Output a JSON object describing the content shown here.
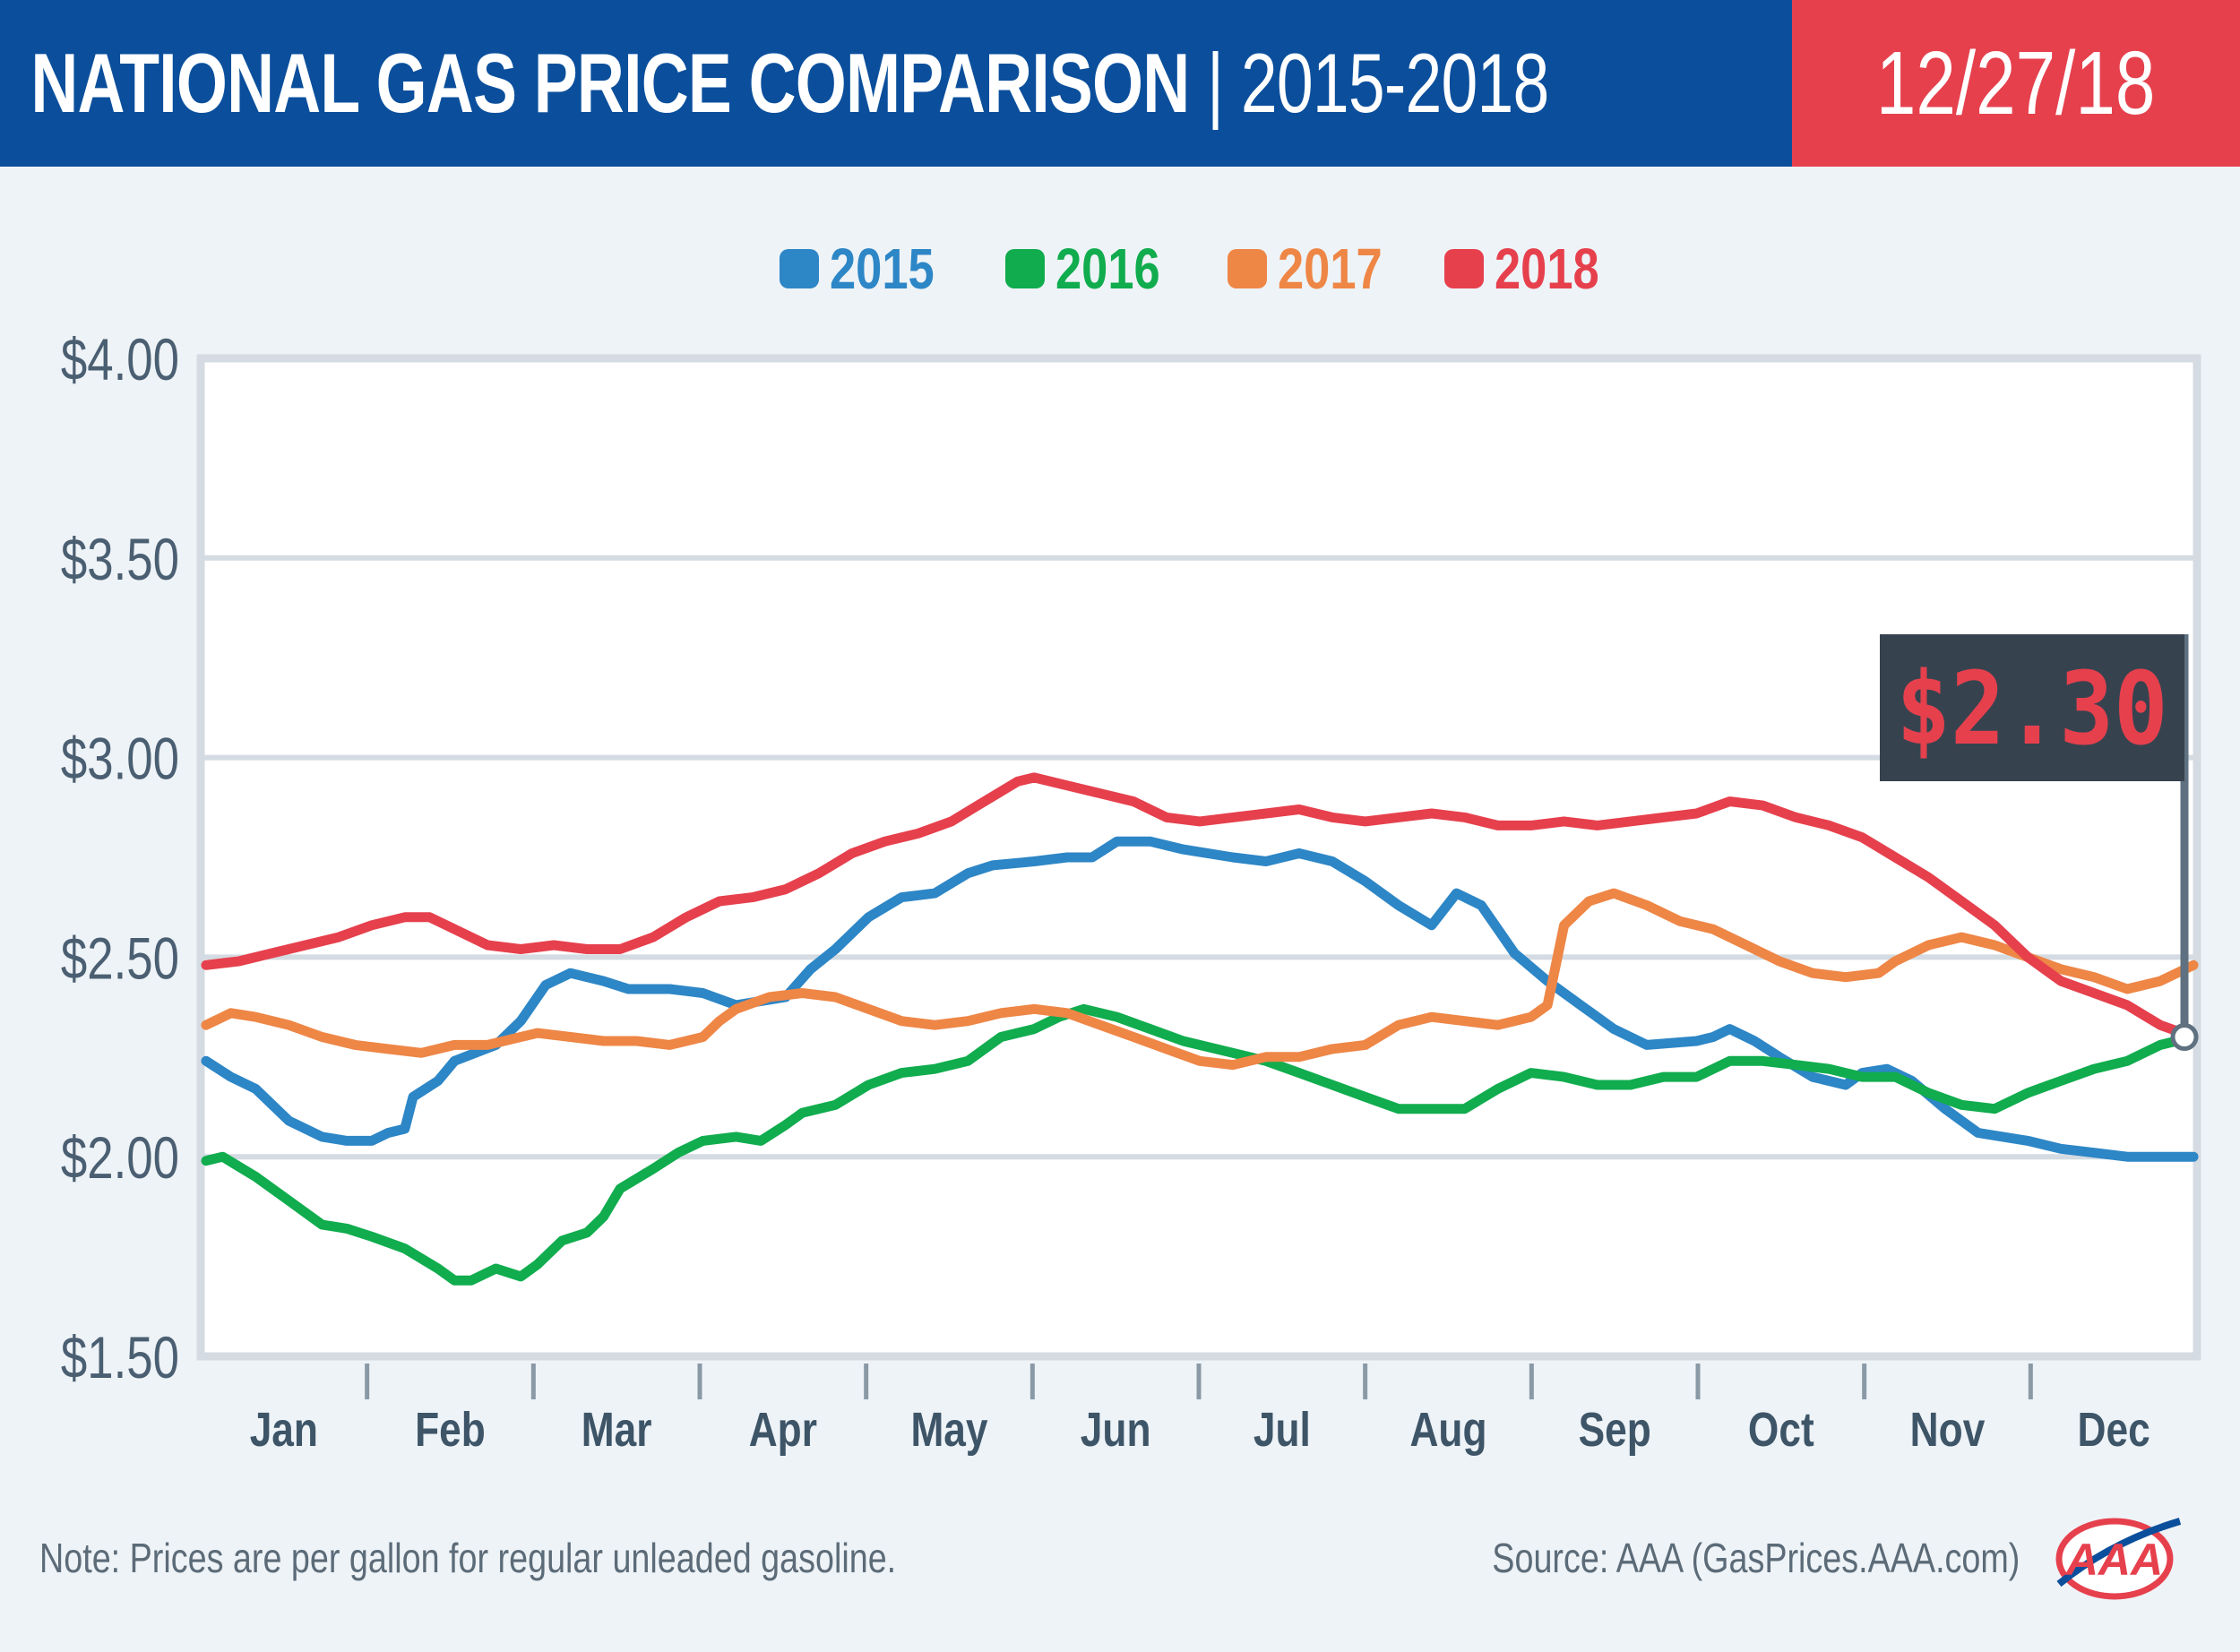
{
  "header": {
    "title_bold": "NATIONAL GAS PRICE COMPARISON",
    "title_rest": " | 2015-2018",
    "date": "12/27/18"
  },
  "colors": {
    "header_blue": "#0b4f9c",
    "header_red": "#e6404d",
    "series_2015": "#2d86c6",
    "series_2016": "#10ac4e",
    "series_2017": "#ee8646",
    "series_2018": "#e6404d"
  },
  "callout": {
    "value": "$2.30",
    "series": "2018"
  },
  "footer": {
    "note": "Note: Prices are per gallon for regular unleaded gasoline.",
    "source": "Source: AAA (GasPrices.AAA.com)",
    "logo_text": "AAA"
  },
  "chart_data": {
    "type": "line",
    "title": "NATIONAL GAS PRICE COMPARISON | 2015-2018",
    "xlabel": "",
    "ylabel": "",
    "ylim": [
      1.5,
      4.0
    ],
    "yticks": [
      1.5,
      2.0,
      2.5,
      3.0,
      3.5,
      4.0
    ],
    "ytick_labels": [
      "$1.50",
      "$2.00",
      "$2.50",
      "$3.00",
      "$3.50",
      "$4.00"
    ],
    "categories": [
      "Jan",
      "Feb",
      "Mar",
      "Apr",
      "May",
      "Jun",
      "Jul",
      "Aug",
      "Sep",
      "Oct",
      "Nov",
      "Dec"
    ],
    "grid": true,
    "legend_position": "top-center",
    "x_note": "x = month position, 0 = start of Jan, 12 = end of Dec",
    "series": [
      {
        "name": "2015",
        "points": [
          [
            0.0,
            2.24
          ],
          [
            0.15,
            2.2
          ],
          [
            0.3,
            2.17
          ],
          [
            0.5,
            2.09
          ],
          [
            0.7,
            2.05
          ],
          [
            0.85,
            2.04
          ],
          [
            1.0,
            2.04
          ],
          [
            1.1,
            2.06
          ],
          [
            1.2,
            2.07
          ],
          [
            1.25,
            2.15
          ],
          [
            1.4,
            2.19
          ],
          [
            1.5,
            2.24
          ],
          [
            1.75,
            2.28
          ],
          [
            1.9,
            2.34
          ],
          [
            2.05,
            2.43
          ],
          [
            2.2,
            2.46
          ],
          [
            2.4,
            2.44
          ],
          [
            2.55,
            2.42
          ],
          [
            2.8,
            2.42
          ],
          [
            3.0,
            2.41
          ],
          [
            3.2,
            2.38
          ],
          [
            3.35,
            2.39
          ],
          [
            3.5,
            2.4
          ],
          [
            3.65,
            2.47
          ],
          [
            3.8,
            2.52
          ],
          [
            4.0,
            2.6
          ],
          [
            4.2,
            2.65
          ],
          [
            4.4,
            2.66
          ],
          [
            4.6,
            2.71
          ],
          [
            4.75,
            2.73
          ],
          [
            5.0,
            2.74
          ],
          [
            5.2,
            2.75
          ],
          [
            5.35,
            2.75
          ],
          [
            5.5,
            2.79
          ],
          [
            5.7,
            2.79
          ],
          [
            5.9,
            2.77
          ],
          [
            6.2,
            2.75
          ],
          [
            6.4,
            2.74
          ],
          [
            6.6,
            2.76
          ],
          [
            6.8,
            2.74
          ],
          [
            7.0,
            2.69
          ],
          [
            7.2,
            2.63
          ],
          [
            7.4,
            2.58
          ],
          [
            7.55,
            2.66
          ],
          [
            7.7,
            2.63
          ],
          [
            7.9,
            2.51
          ],
          [
            8.1,
            2.44
          ],
          [
            8.3,
            2.38
          ],
          [
            8.5,
            2.32
          ],
          [
            8.7,
            2.28
          ],
          [
            9.0,
            2.29
          ],
          [
            9.1,
            2.3
          ],
          [
            9.2,
            2.32
          ],
          [
            9.35,
            2.29
          ],
          [
            9.5,
            2.25
          ],
          [
            9.7,
            2.2
          ],
          [
            9.9,
            2.18
          ],
          [
            10.0,
            2.21
          ],
          [
            10.15,
            2.22
          ],
          [
            10.3,
            2.19
          ],
          [
            10.5,
            2.12
          ],
          [
            10.7,
            2.06
          ],
          [
            11.0,
            2.04
          ],
          [
            11.2,
            2.02
          ],
          [
            11.4,
            2.01
          ],
          [
            11.6,
            2.0
          ],
          [
            12.0,
            2.0
          ]
        ]
      },
      {
        "name": "2016",
        "points": [
          [
            0.0,
            1.99
          ],
          [
            0.1,
            2.0
          ],
          [
            0.3,
            1.95
          ],
          [
            0.5,
            1.89
          ],
          [
            0.7,
            1.83
          ],
          [
            0.85,
            1.82
          ],
          [
            1.0,
            1.8
          ],
          [
            1.2,
            1.77
          ],
          [
            1.4,
            1.72
          ],
          [
            1.5,
            1.69
          ],
          [
            1.6,
            1.69
          ],
          [
            1.75,
            1.72
          ],
          [
            1.9,
            1.7
          ],
          [
            2.0,
            1.73
          ],
          [
            2.15,
            1.79
          ],
          [
            2.3,
            1.81
          ],
          [
            2.4,
            1.85
          ],
          [
            2.5,
            1.92
          ],
          [
            2.7,
            1.97
          ],
          [
            2.85,
            2.01
          ],
          [
            3.0,
            2.04
          ],
          [
            3.2,
            2.05
          ],
          [
            3.35,
            2.04
          ],
          [
            3.5,
            2.08
          ],
          [
            3.6,
            2.11
          ],
          [
            3.8,
            2.13
          ],
          [
            4.0,
            2.18
          ],
          [
            4.2,
            2.21
          ],
          [
            4.4,
            2.22
          ],
          [
            4.6,
            2.24
          ],
          [
            4.8,
            2.3
          ],
          [
            5.0,
            2.32
          ],
          [
            5.15,
            2.35
          ],
          [
            5.3,
            2.37
          ],
          [
            5.5,
            2.35
          ],
          [
            5.7,
            2.32
          ],
          [
            5.9,
            2.29
          ],
          [
            6.2,
            2.26
          ],
          [
            6.4,
            2.24
          ],
          [
            6.6,
            2.21
          ],
          [
            6.8,
            2.18
          ],
          [
            7.0,
            2.15
          ],
          [
            7.2,
            2.12
          ],
          [
            7.4,
            2.12
          ],
          [
            7.6,
            2.12
          ],
          [
            7.8,
            2.17
          ],
          [
            8.0,
            2.21
          ],
          [
            8.2,
            2.2
          ],
          [
            8.4,
            2.18
          ],
          [
            8.6,
            2.18
          ],
          [
            8.8,
            2.2
          ],
          [
            9.0,
            2.2
          ],
          [
            9.2,
            2.24
          ],
          [
            9.4,
            2.24
          ],
          [
            9.6,
            2.23
          ],
          [
            9.8,
            2.22
          ],
          [
            10.0,
            2.2
          ],
          [
            10.2,
            2.2
          ],
          [
            10.4,
            2.16
          ],
          [
            10.6,
            2.13
          ],
          [
            10.8,
            2.12
          ],
          [
            11.0,
            2.16
          ],
          [
            11.2,
            2.19
          ],
          [
            11.4,
            2.22
          ],
          [
            11.6,
            2.24
          ],
          [
            11.8,
            2.28
          ],
          [
            12.0,
            2.3
          ]
        ]
      },
      {
        "name": "2017",
        "points": [
          [
            0.0,
            2.33
          ],
          [
            0.15,
            2.36
          ],
          [
            0.3,
            2.35
          ],
          [
            0.5,
            2.33
          ],
          [
            0.7,
            2.3
          ],
          [
            0.9,
            2.28
          ],
          [
            1.1,
            2.27
          ],
          [
            1.3,
            2.26
          ],
          [
            1.5,
            2.28
          ],
          [
            1.7,
            2.28
          ],
          [
            1.9,
            2.3
          ],
          [
            2.0,
            2.31
          ],
          [
            2.2,
            2.3
          ],
          [
            2.4,
            2.29
          ],
          [
            2.6,
            2.29
          ],
          [
            2.8,
            2.28
          ],
          [
            3.0,
            2.3
          ],
          [
            3.1,
            2.34
          ],
          [
            3.2,
            2.37
          ],
          [
            3.4,
            2.4
          ],
          [
            3.6,
            2.41
          ],
          [
            3.8,
            2.4
          ],
          [
            4.0,
            2.37
          ],
          [
            4.2,
            2.34
          ],
          [
            4.4,
            2.33
          ],
          [
            4.6,
            2.34
          ],
          [
            4.8,
            2.36
          ],
          [
            5.0,
            2.37
          ],
          [
            5.2,
            2.36
          ],
          [
            5.4,
            2.33
          ],
          [
            5.6,
            2.3
          ],
          [
            5.8,
            2.27
          ],
          [
            6.0,
            2.24
          ],
          [
            6.2,
            2.23
          ],
          [
            6.4,
            2.25
          ],
          [
            6.6,
            2.25
          ],
          [
            6.8,
            2.27
          ],
          [
            7.0,
            2.28
          ],
          [
            7.2,
            2.33
          ],
          [
            7.4,
            2.35
          ],
          [
            7.6,
            2.34
          ],
          [
            7.8,
            2.33
          ],
          [
            8.0,
            2.35
          ],
          [
            8.1,
            2.38
          ],
          [
            8.15,
            2.48
          ],
          [
            8.2,
            2.58
          ],
          [
            8.35,
            2.64
          ],
          [
            8.5,
            2.66
          ],
          [
            8.7,
            2.63
          ],
          [
            8.9,
            2.59
          ],
          [
            9.1,
            2.57
          ],
          [
            9.3,
            2.53
          ],
          [
            9.5,
            2.49
          ],
          [
            9.7,
            2.46
          ],
          [
            9.9,
            2.45
          ],
          [
            10.1,
            2.46
          ],
          [
            10.2,
            2.49
          ],
          [
            10.4,
            2.53
          ],
          [
            10.6,
            2.55
          ],
          [
            10.8,
            2.53
          ],
          [
            11.0,
            2.5
          ],
          [
            11.2,
            2.47
          ],
          [
            11.4,
            2.45
          ],
          [
            11.6,
            2.42
          ],
          [
            11.8,
            2.44
          ],
          [
            12.0,
            2.48
          ]
        ]
      },
      {
        "name": "2018",
        "points": [
          [
            0.0,
            2.48
          ],
          [
            0.2,
            2.49
          ],
          [
            0.4,
            2.51
          ],
          [
            0.6,
            2.53
          ],
          [
            0.8,
            2.55
          ],
          [
            1.0,
            2.58
          ],
          [
            1.2,
            2.6
          ],
          [
            1.35,
            2.6
          ],
          [
            1.5,
            2.57
          ],
          [
            1.7,
            2.53
          ],
          [
            1.9,
            2.52
          ],
          [
            2.1,
            2.53
          ],
          [
            2.3,
            2.52
          ],
          [
            2.5,
            2.52
          ],
          [
            2.7,
            2.55
          ],
          [
            2.9,
            2.6
          ],
          [
            3.1,
            2.64
          ],
          [
            3.3,
            2.65
          ],
          [
            3.5,
            2.67
          ],
          [
            3.7,
            2.71
          ],
          [
            3.9,
            2.76
          ],
          [
            4.1,
            2.79
          ],
          [
            4.3,
            2.81
          ],
          [
            4.5,
            2.84
          ],
          [
            4.7,
            2.89
          ],
          [
            4.9,
            2.94
          ],
          [
            5.0,
            2.95
          ],
          [
            5.2,
            2.93
          ],
          [
            5.4,
            2.91
          ],
          [
            5.6,
            2.89
          ],
          [
            5.8,
            2.85
          ],
          [
            6.0,
            2.84
          ],
          [
            6.2,
            2.85
          ],
          [
            6.4,
            2.86
          ],
          [
            6.6,
            2.87
          ],
          [
            6.8,
            2.85
          ],
          [
            7.0,
            2.84
          ],
          [
            7.2,
            2.85
          ],
          [
            7.4,
            2.86
          ],
          [
            7.6,
            2.85
          ],
          [
            7.8,
            2.83
          ],
          [
            8.0,
            2.83
          ],
          [
            8.2,
            2.84
          ],
          [
            8.4,
            2.83
          ],
          [
            8.6,
            2.84
          ],
          [
            8.8,
            2.85
          ],
          [
            9.0,
            2.86
          ],
          [
            9.2,
            2.89
          ],
          [
            9.4,
            2.88
          ],
          [
            9.6,
            2.85
          ],
          [
            9.8,
            2.83
          ],
          [
            10.0,
            2.8
          ],
          [
            10.2,
            2.75
          ],
          [
            10.4,
            2.7
          ],
          [
            10.6,
            2.64
          ],
          [
            10.8,
            2.58
          ],
          [
            11.0,
            2.5
          ],
          [
            11.2,
            2.44
          ],
          [
            11.4,
            2.41
          ],
          [
            11.6,
            2.38
          ],
          [
            11.8,
            2.33
          ],
          [
            12.0,
            2.3
          ]
        ]
      }
    ]
  }
}
